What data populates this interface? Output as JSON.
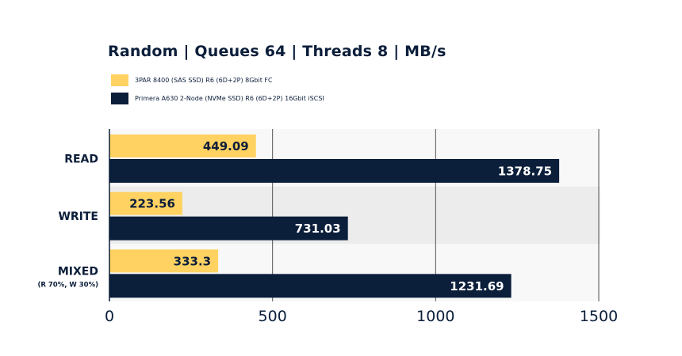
{
  "chart_data": {
    "type": "bar",
    "orientation": "horizontal",
    "title": "Random | Queues 64 | Threads 8 | MB/s",
    "categories": [
      "READ",
      "WRITE",
      "MIXED"
    ],
    "category_sublabels": [
      "",
      "",
      "(R 70%, W 30%)"
    ],
    "series": [
      {
        "name": "3PAR 8400 (SAS SSD) R6 (6D+2P) 8Gbit FC",
        "color": "#ffd262",
        "values": [
          449.09,
          223.56,
          333.3
        ],
        "value_labels": [
          "449.09",
          "223.56",
          "333.3"
        ]
      },
      {
        "name": "Primera A630 2-Node (NVMe SSD) R6 (6D+2P) 16Gbit iSCSI",
        "color": "#0b1e3a",
        "values": [
          1378.75,
          731.03,
          1231.69
        ],
        "value_labels": [
          "1378.75",
          "731.03",
          "1231.69"
        ]
      }
    ],
    "xlim": [
      0,
      1500
    ],
    "xticks": [
      0,
      500,
      1000,
      1500
    ],
    "xtick_labels": [
      "0",
      "500",
      "1000",
      "1500"
    ],
    "xlabel": "",
    "ylabel": "",
    "grid": true,
    "legend_position": "top-left",
    "band_colors": [
      "#f8f8f8",
      "#ececec",
      "#f8f8f8"
    ]
  }
}
